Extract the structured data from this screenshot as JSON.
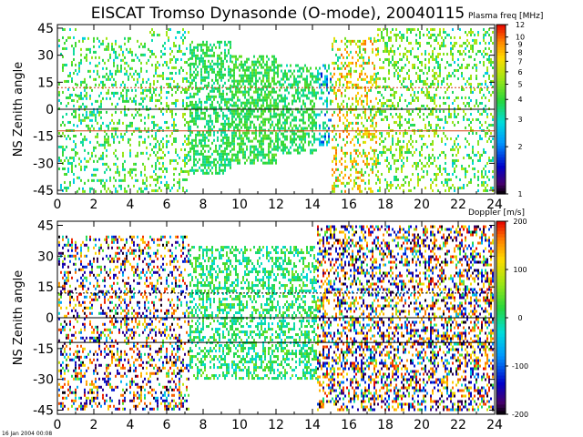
{
  "title": "EISCAT Tromso Dynasonde (O-mode),  20040115",
  "footer_stamp": "16 Jan 2004 00:08",
  "chart_data": [
    {
      "type": "heatmap",
      "panel": "top",
      "ylabel": "NS Zenith angle",
      "xlim": [
        0,
        24
      ],
      "ylim": [
        -47,
        47
      ],
      "x_ticks": [
        "0",
        "2",
        "4",
        "6",
        "8",
        "10",
        "12",
        "14",
        "16",
        "18",
        "20",
        "22",
        "24"
      ],
      "y_ticks": [
        "-45",
        "-30",
        "-15",
        "0",
        "15",
        "30",
        "45"
      ],
      "colorbar": {
        "label": "Plasma freq [MHz]",
        "scale": "log",
        "range": [
          1,
          12
        ],
        "ticks": [
          "12",
          "10",
          "9",
          "8",
          "7",
          "6",
          "5",
          "4",
          "3",
          "2",
          "1"
        ]
      },
      "reference_lines": [
        {
          "y": 0,
          "color": "#000000",
          "style": "solid"
        },
        {
          "y": 12,
          "color": "#d04010",
          "style": "dotted"
        },
        {
          "y": -12,
          "color": "#d04010",
          "style": "solid"
        }
      ],
      "segments": [
        {
          "x0": 0.0,
          "x1": 1.0,
          "ymin": -45,
          "ymax": 45,
          "density": 0.2,
          "fmin": 2.5,
          "fmax": 5.0
        },
        {
          "x0": 1.0,
          "x1": 5.0,
          "ymin": -45,
          "ymax": 40,
          "density": 0.26,
          "fmin": 2.5,
          "fmax": 5.5
        },
        {
          "x0": 5.0,
          "x1": 7.2,
          "ymin": -45,
          "ymax": 45,
          "density": 0.3,
          "fmin": 2.5,
          "fmax": 6.0
        },
        {
          "x0": 7.2,
          "x1": 9.5,
          "ymin": -35,
          "ymax": 38,
          "density": 0.55,
          "fmin": 3.0,
          "fmax": 4.5
        },
        {
          "x0": 9.5,
          "x1": 12.0,
          "ymin": -30,
          "ymax": 30,
          "density": 0.62,
          "fmin": 3.2,
          "fmax": 4.8
        },
        {
          "x0": 12.0,
          "x1": 14.2,
          "ymin": -25,
          "ymax": 25,
          "density": 0.5,
          "fmin": 3.0,
          "fmax": 4.5
        },
        {
          "x0": 14.2,
          "x1": 15.0,
          "ymin": -20,
          "ymax": 25,
          "density": 0.4,
          "fmin": 1.5,
          "fmax": 4.0
        },
        {
          "x0": 15.0,
          "x1": 17.5,
          "ymin": -45,
          "ymax": 40,
          "density": 0.35,
          "fmin": 3.0,
          "fmax": 10.0
        },
        {
          "x0": 17.5,
          "x1": 21.0,
          "ymin": -45,
          "ymax": 45,
          "density": 0.32,
          "fmin": 3.0,
          "fmax": 6.5
        },
        {
          "x0": 21.0,
          "x1": 24.0,
          "ymin": -45,
          "ymax": 45,
          "density": 0.28,
          "fmin": 2.5,
          "fmax": 6.0
        }
      ]
    },
    {
      "type": "heatmap",
      "panel": "bottom",
      "ylabel": "NS Zenith angle",
      "xlim": [
        0,
        24
      ],
      "ylim": [
        -47,
        47
      ],
      "x_ticks": [
        "0",
        "2",
        "4",
        "6",
        "8",
        "10",
        "12",
        "14",
        "16",
        "18",
        "20",
        "22",
        "24"
      ],
      "y_ticks": [
        "-45",
        "-30",
        "-15",
        "0",
        "15",
        "30",
        "45"
      ],
      "colorbar": {
        "label": "Doppler [m/s]",
        "scale": "linear",
        "range": [
          -200,
          200
        ],
        "ticks": [
          "200",
          "100",
          "0",
          "-100",
          "-200"
        ]
      },
      "reference_lines": [
        {
          "y": 0,
          "color": "#000000",
          "style": "solid"
        },
        {
          "y": 12,
          "color": "#000000",
          "style": "dotted"
        },
        {
          "y": -12,
          "color": "#000000",
          "style": "solid"
        }
      ],
      "segments": [
        {
          "x0": 0.0,
          "x1": 7.2,
          "ymin": -45,
          "ymax": 40,
          "density": 0.32,
          "vmin": -200,
          "vmax": 200
        },
        {
          "x0": 7.2,
          "x1": 14.2,
          "ymin": -30,
          "ymax": 35,
          "density": 0.45,
          "vmin": -40,
          "vmax": 60
        },
        {
          "x0": 14.2,
          "x1": 24.0,
          "ymin": -45,
          "ymax": 45,
          "density": 0.45,
          "vmin": -200,
          "vmax": 200
        }
      ]
    }
  ]
}
